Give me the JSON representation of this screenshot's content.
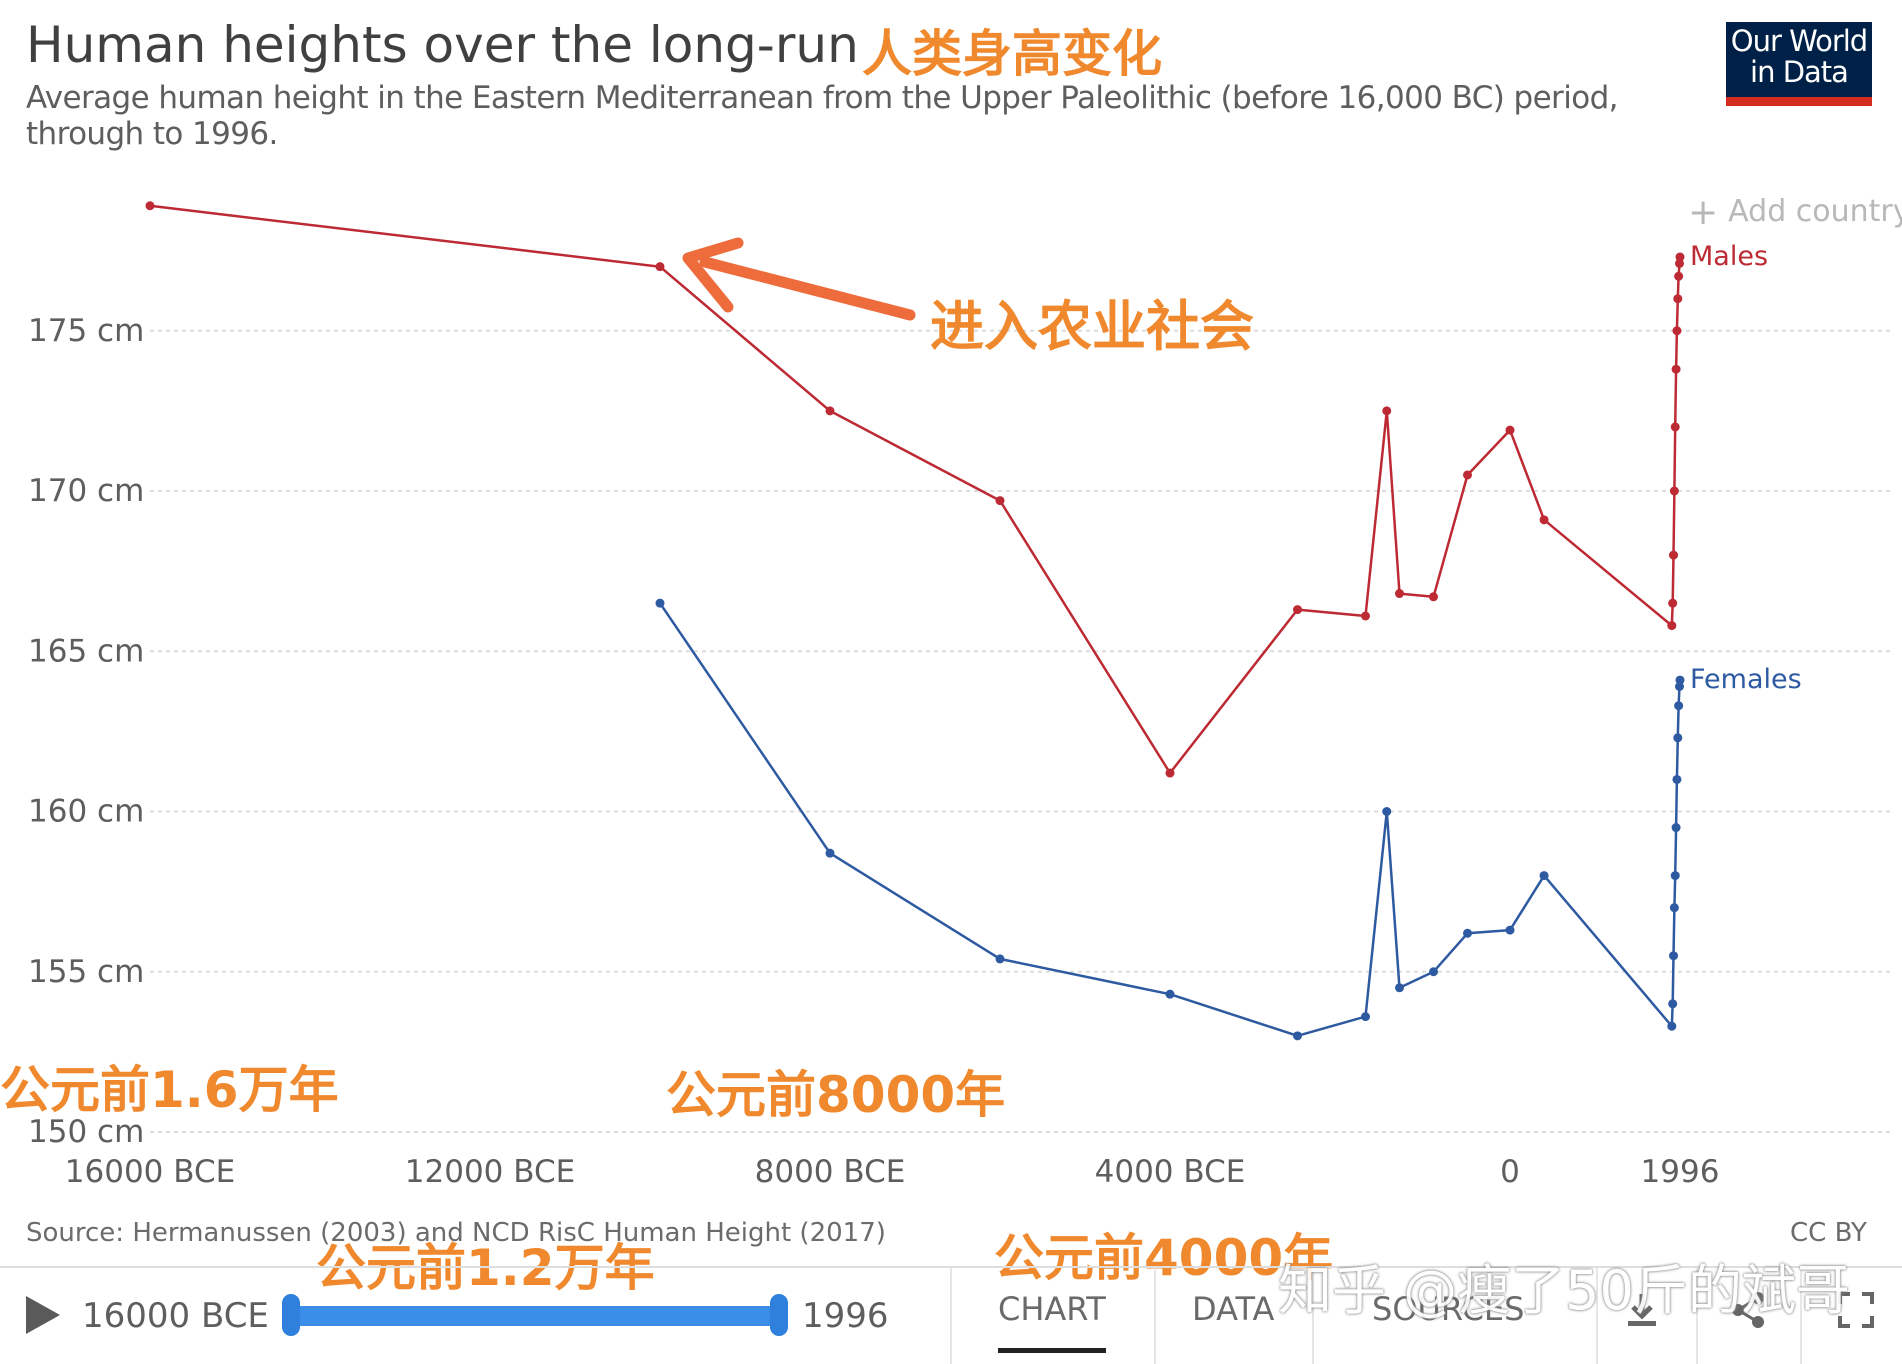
{
  "header": {
    "title": "Human heights over the long-run",
    "title_annotation": "人类身高变化",
    "subtitle": "Average human height in the Eastern Mediterranean from the Upper Paleolithic (before 16,000 BC) period, through to 1996.",
    "logo_line1": "Our World",
    "logo_line2": "in Data"
  },
  "controls": {
    "add_country_label": "Add country"
  },
  "annotations": {
    "agriculture": "进入农业社会",
    "bce_16000": "公元前1.6万年",
    "bce_12000": "公元前1.2万年",
    "bce_8000": "公元前8000年",
    "bce_4000": "公元前4000年"
  },
  "chart_data": {
    "type": "line",
    "title": "Human heights over the long-run",
    "x_tick_labels": [
      "16000 BCE",
      "12000 BCE",
      "8000 BCE",
      "4000 BCE",
      "0",
      "1996"
    ],
    "x_ticks": [
      -16000,
      -12000,
      -8000,
      -4000,
      0,
      1996
    ],
    "y_tick_labels": [
      "150 cm",
      "155 cm",
      "160 cm",
      "165 cm",
      "170 cm",
      "175 cm"
    ],
    "y_ticks": [
      150,
      155,
      160,
      165,
      170,
      175
    ],
    "ylim": [
      150,
      180
    ],
    "grid": "horizontal dashed",
    "series": [
      {
        "name": "Males",
        "color": "#bd2a34",
        "points": [
          [
            -16000,
            178.9
          ],
          [
            -10000,
            177.0
          ],
          [
            -8000,
            172.5
          ],
          [
            -6000,
            169.7
          ],
          [
            -4000,
            161.2
          ],
          [
            -2500,
            166.3
          ],
          [
            -1700,
            166.1
          ],
          [
            -1450,
            172.5
          ],
          [
            -1300,
            166.8
          ],
          [
            -900,
            166.7
          ],
          [
            -500,
            170.5
          ],
          [
            0,
            171.9
          ],
          [
            400,
            169.1
          ],
          [
            1900,
            165.8
          ],
          [
            1910,
            166.5
          ],
          [
            1920,
            168.0
          ],
          [
            1930,
            170.0
          ],
          [
            1940,
            172.0
          ],
          [
            1950,
            173.8
          ],
          [
            1960,
            175.0
          ],
          [
            1970,
            176.0
          ],
          [
            1980,
            176.7
          ],
          [
            1990,
            177.1
          ],
          [
            1996,
            177.3
          ]
        ]
      },
      {
        "name": "Females",
        "color": "#2e5aa1",
        "points": [
          [
            -10000,
            166.5
          ],
          [
            -8000,
            158.7
          ],
          [
            -6000,
            155.4
          ],
          [
            -4000,
            154.3
          ],
          [
            -2500,
            153.0
          ],
          [
            -1700,
            153.6
          ],
          [
            -1450,
            160.0
          ],
          [
            -1300,
            154.5
          ],
          [
            -900,
            155.0
          ],
          [
            -500,
            156.2
          ],
          [
            0,
            156.3
          ],
          [
            400,
            158.0
          ],
          [
            1900,
            153.3
          ],
          [
            1910,
            154.0
          ],
          [
            1920,
            155.5
          ],
          [
            1930,
            157.0
          ],
          [
            1940,
            158.0
          ],
          [
            1950,
            159.5
          ],
          [
            1960,
            161.0
          ],
          [
            1970,
            162.3
          ],
          [
            1980,
            163.3
          ],
          [
            1990,
            163.9
          ],
          [
            1996,
            164.1
          ]
        ]
      }
    ]
  },
  "footer": {
    "source": "Source: Hermanussen (2003) and NCD RisC Human Height (2017)",
    "license": "CC BY"
  },
  "timeline": {
    "start_label": "16000 BCE",
    "end_label": "1996",
    "range_start": -16000,
    "range_end": 1996
  },
  "tabs": [
    "CHART",
    "DATA",
    "SOURCES"
  ],
  "watermark": "知乎 @瘦了50斤的斌哥"
}
